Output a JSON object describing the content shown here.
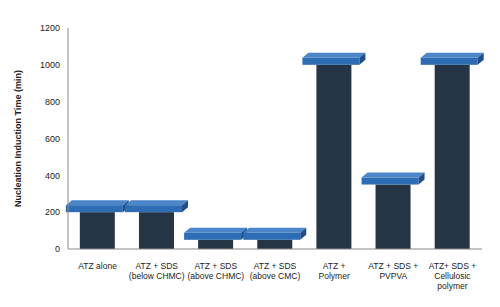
{
  "chart_data": {
    "type": "bar",
    "ylabel": "Nucleation Induction Time (min)",
    "categories": [
      "ATZ alone",
      "ATZ + SDS (below CHMC)",
      "ATZ + SDS (above CHMC)",
      "ATZ + SDS (above CMC)",
      "ATZ + Polymer",
      "ATZ + SDS + PVPVA",
      "ATZ+ SDS + Cellulosic polymer"
    ],
    "values": [
      200,
      200,
      50,
      50,
      1000,
      350,
      1000
    ],
    "color": "#253546",
    "ylim": [
      0,
      1200
    ],
    "yticks": [
      0,
      200,
      400,
      600,
      800,
      1000,
      1200
    ],
    "grid": false
  }
}
